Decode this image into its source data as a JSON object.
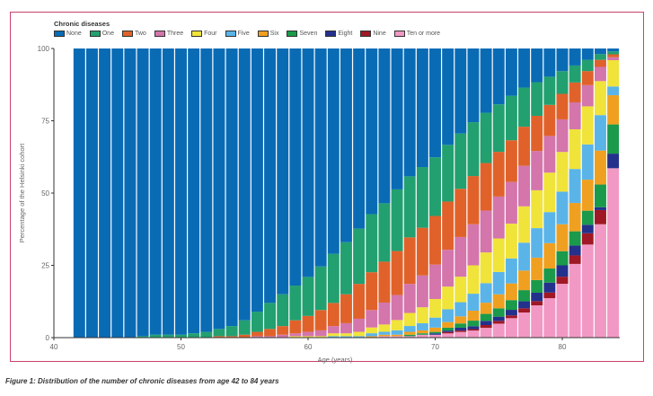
{
  "chart_data": {
    "type": "bar",
    "stacked": true,
    "title": "",
    "legend_title": "Chronic diseases",
    "legend_position": "top-left",
    "xlabel": "Age (years)",
    "ylabel": "Percentage of the Helsinki cohort",
    "xlim": [
      40,
      85
    ],
    "ylim": [
      0,
      100
    ],
    "xticks": [
      40,
      50,
      60,
      70,
      80
    ],
    "yticks": [
      0,
      25,
      50,
      75,
      100
    ],
    "grid": false,
    "x": [
      42,
      43,
      44,
      45,
      46,
      47,
      48,
      49,
      50,
      51,
      52,
      53,
      54,
      55,
      56,
      57,
      58,
      59,
      60,
      61,
      62,
      63,
      64,
      65,
      66,
      67,
      68,
      69,
      70,
      71,
      72,
      73,
      74,
      75,
      76,
      77,
      78,
      79,
      80,
      81,
      82,
      83,
      84
    ],
    "series": [
      {
        "name": "None",
        "color": "#0a6bb5",
        "values": [
          100,
          100,
          100,
          100,
          100,
          99.5,
          99,
          99,
          99,
          98.5,
          98,
          97,
          96,
          94,
          91,
          88,
          85,
          82,
          79,
          75,
          71,
          67,
          62,
          57,
          53,
          48,
          44,
          41,
          38,
          34,
          30,
          26,
          23,
          20,
          17,
          14,
          12,
          10,
          8,
          6,
          4,
          2,
          1
        ]
      },
      {
        "name": "One",
        "color": "#22a070",
        "values": [
          0,
          0,
          0,
          0,
          0,
          0.5,
          1,
          1,
          1,
          1.5,
          2,
          2.5,
          3.5,
          5,
          7,
          9,
          11,
          12,
          13.5,
          15,
          17,
          18,
          19,
          20,
          20,
          21,
          21,
          21,
          20.5,
          20,
          19.5,
          19,
          18,
          17,
          16,
          14,
          12,
          10,
          8,
          6,
          4,
          2,
          1
        ]
      },
      {
        "name": "Two",
        "color": "#e0622a",
        "values": [
          0,
          0,
          0,
          0,
          0,
          0,
          0,
          0,
          0,
          0,
          0,
          0.5,
          0.5,
          1,
          1.5,
          2.5,
          3,
          4.5,
          5.5,
          7,
          8,
          10,
          12,
          13,
          14,
          15,
          16,
          16.5,
          17,
          17,
          17,
          17,
          17,
          16,
          15,
          14,
          12.5,
          11,
          9,
          7,
          5,
          2.5,
          1
        ]
      },
      {
        "name": "Three",
        "color": "#d475ac",
        "values": [
          0,
          0,
          0,
          0,
          0,
          0,
          0,
          0,
          0,
          0,
          0,
          0,
          0,
          0,
          0.5,
          0.5,
          1,
          1,
          1.5,
          2,
          2.5,
          3.5,
          4.5,
          6,
          7.5,
          8.5,
          10,
          11,
          12,
          13,
          14,
          14.5,
          15,
          15,
          15,
          14.5,
          14,
          13,
          11.5,
          9.5,
          7.5,
          5,
          1
        ]
      },
      {
        "name": "Four",
        "color": "#f0e33a",
        "values": [
          0,
          0,
          0,
          0,
          0,
          0,
          0,
          0,
          0,
          0,
          0,
          0,
          0,
          0,
          0,
          0,
          0,
          0.5,
          0.5,
          0.5,
          1,
          1,
          1.5,
          2,
          2.5,
          3.5,
          4.5,
          5.5,
          6.5,
          8,
          9,
          10,
          11,
          12,
          12.5,
          13,
          13.5,
          14,
          14,
          14,
          13.5,
          12,
          9
        ]
      },
      {
        "name": "Five",
        "color": "#5ab4e8",
        "values": [
          0,
          0,
          0,
          0,
          0,
          0,
          0,
          0,
          0,
          0,
          0,
          0,
          0,
          0,
          0,
          0,
          0,
          0,
          0,
          0,
          0.5,
          0.5,
          0.5,
          1,
          1,
          1.5,
          2,
          2.5,
          3.5,
          4.5,
          5,
          6,
          7,
          8,
          9,
          10,
          10.5,
          11,
          11.5,
          12,
          12.5,
          12.5,
          3
        ]
      },
      {
        "name": "Six",
        "color": "#f0a020",
        "values": [
          0,
          0,
          0,
          0,
          0,
          0,
          0,
          0,
          0,
          0,
          0,
          0,
          0,
          0,
          0,
          0,
          0,
          0,
          0,
          0,
          0,
          0,
          0,
          0.5,
          0.5,
          0.5,
          1,
          1,
          1.5,
          2,
          2.5,
          3.5,
          4,
          5,
          6,
          7,
          8,
          9,
          9.5,
          10,
          11,
          12,
          10
        ]
      },
      {
        "name": "Seven",
        "color": "#1a9a4a",
        "values": [
          0,
          0,
          0,
          0,
          0,
          0,
          0,
          0,
          0,
          0,
          0,
          0,
          0,
          0,
          0,
          0,
          0,
          0,
          0,
          0,
          0,
          0,
          0,
          0,
          0,
          0,
          0.5,
          0.5,
          0.5,
          1,
          1.5,
          2,
          2.5,
          3,
          3.5,
          4,
          4.5,
          5,
          5,
          5,
          5,
          8,
          10
        ]
      },
      {
        "name": "Eight",
        "color": "#23308c",
        "values": [
          0,
          0,
          0,
          0,
          0,
          0,
          0,
          0,
          0,
          0,
          0,
          0,
          0,
          0,
          0,
          0,
          0,
          0,
          0,
          0,
          0,
          0,
          0,
          0,
          0,
          0,
          0,
          0,
          0.5,
          0.5,
          1,
          1,
          1.5,
          1.5,
          2,
          2.5,
          3,
          3.5,
          4,
          3.5,
          3,
          1,
          5
        ]
      },
      {
        "name": "Nine",
        "color": "#a01825",
        "values": [
          0,
          0,
          0,
          0,
          0,
          0,
          0,
          0,
          0,
          0,
          0,
          0,
          0,
          0,
          0,
          0,
          0,
          0,
          0,
          0,
          0,
          0,
          0,
          0,
          0,
          0,
          0,
          0,
          0,
          0.5,
          0.5,
          0.5,
          1,
          1,
          1,
          1.5,
          1.5,
          2,
          2.5,
          3,
          4,
          5,
          0
        ]
      },
      {
        "name": "Ten or more",
        "color": "#f298c4",
        "values": [
          0,
          0,
          0,
          0,
          0,
          0,
          0,
          0,
          0,
          0,
          0,
          0,
          0,
          0,
          0,
          0,
          0,
          0,
          0,
          0,
          0,
          0,
          0,
          0,
          0.5,
          0.5,
          0.5,
          1,
          1,
          1.5,
          2,
          2.5,
          3.5,
          5,
          7,
          9,
          11.5,
          14,
          19,
          26,
          33,
          40,
          58
        ]
      }
    ]
  },
  "caption": "Figure 1: Distribution of the number of chronic diseases from age 42 to 84 years"
}
